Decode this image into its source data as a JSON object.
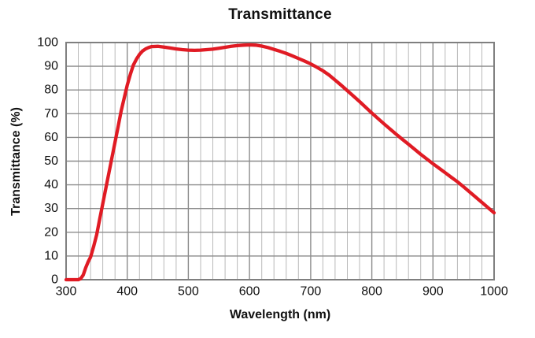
{
  "colors": {
    "curve": "#e01b24",
    "grid_major": "#8c8c8c",
    "grid_minor": "#b9b9b9",
    "border": "#7f7f7f",
    "text": "#111111",
    "background": "#ffffff"
  },
  "chart_data": {
    "type": "line",
    "title": "Transmittance",
    "xlabel": "Wavelength (nm)",
    "ylabel": "Transmittance (%)",
    "xlim": [
      300,
      1000
    ],
    "ylim": [
      0,
      100
    ],
    "x_major_ticks": [
      300,
      400,
      500,
      600,
      700,
      800,
      900,
      1000
    ],
    "x_minor_step": 20,
    "y_ticks": [
      0,
      10,
      20,
      30,
      40,
      50,
      60,
      70,
      80,
      90,
      100
    ],
    "grid": "horizontal major lines every 10%; vertical major every 100 nm with minor every 20 nm",
    "legend": "none",
    "series": [
      {
        "name": "Transmittance",
        "color": "#e01b24",
        "points": [
          [
            300,
            0
          ],
          [
            310,
            0
          ],
          [
            320,
            0
          ],
          [
            324,
            0.5
          ],
          [
            328,
            2
          ],
          [
            332,
            5
          ],
          [
            336,
            7.5
          ],
          [
            340,
            9.5
          ],
          [
            345,
            14
          ],
          [
            350,
            19
          ],
          [
            355,
            25.5
          ],
          [
            360,
            32
          ],
          [
            365,
            38.5
          ],
          [
            370,
            45
          ],
          [
            375,
            51.5
          ],
          [
            380,
            58
          ],
          [
            385,
            64.5
          ],
          [
            390,
            71
          ],
          [
            395,
            76.5
          ],
          [
            400,
            82
          ],
          [
            405,
            86.5
          ],
          [
            410,
            90.5
          ],
          [
            415,
            93
          ],
          [
            420,
            95
          ],
          [
            425,
            96.4
          ],
          [
            430,
            97.3
          ],
          [
            435,
            97.9
          ],
          [
            440,
            98.3
          ],
          [
            450,
            98.4
          ],
          [
            460,
            98.1
          ],
          [
            470,
            97.7
          ],
          [
            480,
            97.3
          ],
          [
            490,
            97.0
          ],
          [
            500,
            96.8
          ],
          [
            510,
            96.7
          ],
          [
            520,
            96.8
          ],
          [
            530,
            97.0
          ],
          [
            540,
            97.2
          ],
          [
            550,
            97.6
          ],
          [
            560,
            98.0
          ],
          [
            570,
            98.4
          ],
          [
            580,
            98.7
          ],
          [
            590,
            98.9
          ],
          [
            600,
            99.0
          ],
          [
            610,
            98.9
          ],
          [
            620,
            98.5
          ],
          [
            630,
            97.9
          ],
          [
            640,
            97.1
          ],
          [
            650,
            96.3
          ],
          [
            660,
            95.4
          ],
          [
            670,
            94.4
          ],
          [
            680,
            93.3
          ],
          [
            690,
            92.2
          ],
          [
            700,
            91.0
          ],
          [
            710,
            89.6
          ],
          [
            720,
            88.1
          ],
          [
            730,
            86.3
          ],
          [
            740,
            84.2
          ],
          [
            750,
            82.0
          ],
          [
            760,
            79.7
          ],
          [
            770,
            77.4
          ],
          [
            780,
            75.1
          ],
          [
            790,
            72.7
          ],
          [
            800,
            70.3
          ],
          [
            810,
            68.0
          ],
          [
            820,
            65.7
          ],
          [
            830,
            63.5
          ],
          [
            840,
            61.3
          ],
          [
            850,
            59.2
          ],
          [
            860,
            57.1
          ],
          [
            870,
            55.0
          ],
          [
            880,
            52.9
          ],
          [
            890,
            50.9
          ],
          [
            900,
            48.9
          ],
          [
            910,
            47.0
          ],
          [
            920,
            45.1
          ],
          [
            930,
            43.2
          ],
          [
            940,
            41.3
          ],
          [
            950,
            39.2
          ],
          [
            960,
            37.0
          ],
          [
            970,
            34.8
          ],
          [
            980,
            32.6
          ],
          [
            990,
            30.4
          ],
          [
            1000,
            28.2
          ]
        ]
      }
    ]
  }
}
